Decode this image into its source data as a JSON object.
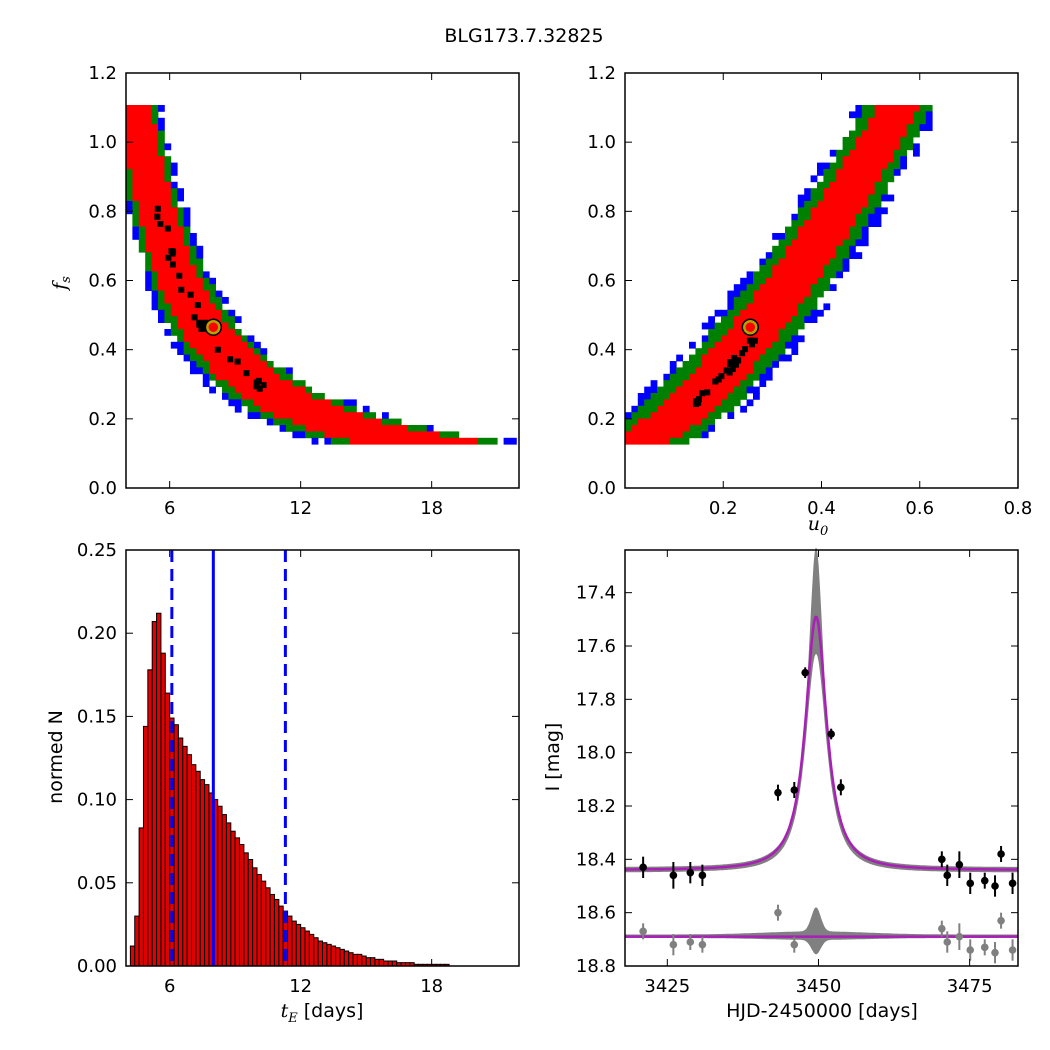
{
  "figure": {
    "title": "BLG173.7.32825"
  },
  "colors": {
    "conf1": "#ff0000",
    "conf2": "#008000",
    "conf3": "#0000ff",
    "best": "#000000",
    "marker_ring": "#b5a100",
    "hist_fill": "#e00000",
    "hist_edge": "#000000",
    "median_line": "#0000ff",
    "model": "#aa1fb8",
    "band": "#808080",
    "data_main": "#000000",
    "data_resid": "#808080"
  },
  "chart_data": [
    {
      "id": "panel-tE-fs",
      "type": "heatmap",
      "description_values": "confidence regions of blending fraction f_s versus Einstein timescale t_E",
      "xlabel": "",
      "ylabel_main": "f",
      "ylabel_sub": "s",
      "xlim": [
        4.0,
        22.0
      ],
      "ylim": [
        0.0,
        1.2
      ],
      "xticks": [
        6,
        12,
        18
      ],
      "xtick_labels": [
        "6",
        "12",
        "18"
      ],
      "yticks": [
        0.0,
        0.2,
        0.4,
        0.6,
        0.8,
        1.0,
        1.2
      ],
      "ytick_labels": [
        "0.0",
        "0.2",
        "0.4",
        "0.6",
        "0.8",
        "1.0",
        "1.2"
      ],
      "fs_range": [
        0.12,
        1.1
      ],
      "relation": "t_E ≈ 4.1 / f_s^0.7 (approx.)",
      "best_fit": {
        "tE": 8.0,
        "fs": 0.465
      }
    },
    {
      "id": "panel-u0-fs",
      "type": "heatmap",
      "description_values": "confidence regions of blending fraction f_s versus impact parameter u0",
      "xlabel_main": "u",
      "xlabel_sub": "0",
      "ylabel": "",
      "xlim": [
        0.0,
        0.8
      ],
      "ylim": [
        0.0,
        1.2
      ],
      "xticks": [
        0.2,
        0.4,
        0.6,
        0.8
      ],
      "xtick_labels": [
        "0.2",
        "0.4",
        "0.6",
        "0.8"
      ],
      "yticks": [
        0.0,
        0.2,
        0.4,
        0.6,
        0.8,
        1.0,
        1.2
      ],
      "ytick_labels": [
        "0.0",
        "0.2",
        "0.4",
        "0.6",
        "0.8",
        "1.0",
        "1.2"
      ],
      "fs_range": [
        0.12,
        1.1
      ],
      "relation": "f_s ≈ 0.12 + 2.3·u0^1.45 (approx.)",
      "best_fit": {
        "u0": 0.255,
        "fs": 0.465
      }
    },
    {
      "id": "panel-tE-hist",
      "type": "bar",
      "xlabel_main": "t",
      "xlabel_sub": "E",
      "xlabel_rest": " [days]",
      "ylabel": "normed N",
      "xlim": [
        4.0,
        22.0
      ],
      "ylim": [
        0.0,
        0.25
      ],
      "xticks": [
        6,
        12,
        18
      ],
      "xtick_labels": [
        "6",
        "12",
        "18"
      ],
      "yticks": [
        0.0,
        0.05,
        0.1,
        0.15,
        0.2,
        0.25
      ],
      "ytick_labels": [
        "0.00",
        "0.05",
        "0.10",
        "0.15",
        "0.20",
        "0.25"
      ],
      "bin_start": 4.2,
      "bin_width": 0.2,
      "values": [
        0.012,
        0.03,
        0.083,
        0.144,
        0.178,
        0.207,
        0.212,
        0.188,
        0.164,
        0.149,
        0.145,
        0.137,
        0.132,
        0.127,
        0.121,
        0.117,
        0.112,
        0.109,
        0.104,
        0.1,
        0.096,
        0.091,
        0.086,
        0.081,
        0.077,
        0.073,
        0.068,
        0.064,
        0.059,
        0.055,
        0.051,
        0.047,
        0.043,
        0.04,
        0.036,
        0.033,
        0.03,
        0.027,
        0.025,
        0.023,
        0.021,
        0.019,
        0.017,
        0.015,
        0.014,
        0.013,
        0.012,
        0.011,
        0.01,
        0.009,
        0.008,
        0.007,
        0.007,
        0.006,
        0.005,
        0.005,
        0.004,
        0.004,
        0.003,
        0.003,
        0.003,
        0.002,
        0.002,
        0.002,
        0.002,
        0.001,
        0.001,
        0.001,
        0.001,
        0.001,
        0.001,
        0.001,
        0.001,
        0.0,
        0.0,
        0.0,
        0.0,
        0.0,
        0.0,
        0.0,
        0.0,
        0.0,
        0.0,
        0.0,
        0.0,
        0.0,
        0.0,
        0.0,
        0.0
      ],
      "median": 8.0,
      "dashed_lines": [
        6.1,
        11.3
      ]
    },
    {
      "id": "panel-lightcurve",
      "type": "line",
      "xlabel": "HJD-2450000 [days]",
      "ylabel": "I [mag]",
      "xlim": [
        3418.0,
        3483.0
      ],
      "ylim": [
        18.8,
        17.24
      ],
      "xticks": [
        3425,
        3450,
        3475
      ],
      "xtick_labels": [
        "3425",
        "3450",
        "3475"
      ],
      "yticks": [
        17.4,
        17.6,
        17.8,
        18.0,
        18.2,
        18.4,
        18.6,
        18.8
      ],
      "ytick_labels": [
        "17.4",
        "17.6",
        "17.8",
        "18.0",
        "18.2",
        "18.4",
        "18.6",
        "18.8"
      ],
      "model": {
        "t0": 3449.6,
        "baseline": 18.44,
        "peak": 17.49,
        "band_peak": 17.24,
        "band_low": 17.62
      },
      "residual_baseline": 18.69,
      "observations": [
        {
          "x": 3421.0,
          "y": 18.43,
          "err": 0.04
        },
        {
          "x": 3426.0,
          "y": 18.46,
          "err": 0.05
        },
        {
          "x": 3428.8,
          "y": 18.45,
          "err": 0.04
        },
        {
          "x": 3430.8,
          "y": 18.46,
          "err": 0.04
        },
        {
          "x": 3443.3,
          "y": 18.15,
          "err": 0.03
        },
        {
          "x": 3446.0,
          "y": 18.14,
          "err": 0.03
        },
        {
          "x": 3447.8,
          "y": 17.7,
          "err": 0.02
        },
        {
          "x": 3452.1,
          "y": 17.93,
          "err": 0.02
        },
        {
          "x": 3453.7,
          "y": 18.13,
          "err": 0.03
        },
        {
          "x": 3470.4,
          "y": 18.4,
          "err": 0.03
        },
        {
          "x": 3471.3,
          "y": 18.46,
          "err": 0.04
        },
        {
          "x": 3473.3,
          "y": 18.42,
          "err": 0.05
        },
        {
          "x": 3475.1,
          "y": 18.49,
          "err": 0.04
        },
        {
          "x": 3477.5,
          "y": 18.48,
          "err": 0.03
        },
        {
          "x": 3479.2,
          "y": 18.5,
          "err": 0.04
        },
        {
          "x": 3480.2,
          "y": 18.38,
          "err": 0.03
        },
        {
          "x": 3482.1,
          "y": 18.49,
          "err": 0.04
        }
      ],
      "residuals": [
        {
          "x": 3421.0,
          "y": 18.67,
          "err": 0.03
        },
        {
          "x": 3426.0,
          "y": 18.72,
          "err": 0.04
        },
        {
          "x": 3428.8,
          "y": 18.71,
          "err": 0.03
        },
        {
          "x": 3430.8,
          "y": 18.72,
          "err": 0.03
        },
        {
          "x": 3443.3,
          "y": 18.6,
          "err": 0.03
        },
        {
          "x": 3446.0,
          "y": 18.72,
          "err": 0.03
        },
        {
          "x": 3470.4,
          "y": 18.66,
          "err": 0.03
        },
        {
          "x": 3471.3,
          "y": 18.71,
          "err": 0.04
        },
        {
          "x": 3473.3,
          "y": 18.69,
          "err": 0.05
        },
        {
          "x": 3475.1,
          "y": 18.74,
          "err": 0.04
        },
        {
          "x": 3477.5,
          "y": 18.73,
          "err": 0.03
        },
        {
          "x": 3479.2,
          "y": 18.75,
          "err": 0.04
        },
        {
          "x": 3480.2,
          "y": 18.63,
          "err": 0.03
        },
        {
          "x": 3482.1,
          "y": 18.74,
          "err": 0.04
        }
      ]
    }
  ]
}
